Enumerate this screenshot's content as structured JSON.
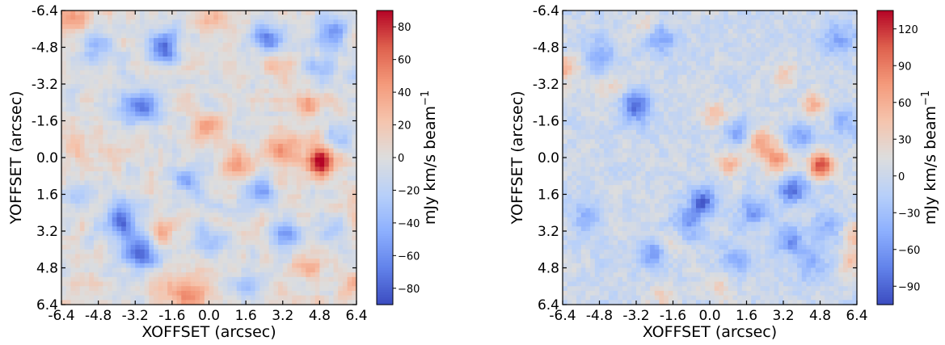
{
  "chart_data": [
    {
      "type": "heatmap",
      "xlabel": "XOFFSET (arcsec)",
      "ylabel": "YOFFSET (arcsec)",
      "x_ticks": [
        "-6.4",
        "-4.8",
        "-3.2",
        "-1.6",
        "0.0",
        "1.6",
        "3.2",
        "4.8",
        "6.4"
      ],
      "y_ticks": [
        "-6.4",
        "-4.8",
        "-3.2",
        "-1.6",
        "0.0",
        "1.6",
        "3.2",
        "4.8",
        "6.4"
      ],
      "xlim": [
        -6.4,
        6.4
      ],
      "ylim": [
        -6.4,
        6.4
      ],
      "y_inverted": true,
      "colormap": "coolwarm",
      "colorbar": {
        "label": "mJy km/s beam",
        "label_exponent": "−1",
        "range": [
          -90,
          90
        ],
        "ticks": [
          "80",
          "60",
          "40",
          "20",
          "0",
          "−20",
          "−40",
          "−60",
          "−80"
        ],
        "tick_values": [
          80,
          60,
          40,
          20,
          0,
          -20,
          -40,
          -60,
          -80
        ]
      },
      "pixels": 64,
      "peak": {
        "x": 4.8,
        "y": 0.2,
        "value": 90
      },
      "features": [
        {
          "x": 4.8,
          "y": 0.2,
          "value": 85,
          "sigma": 0.45
        },
        {
          "x": 3.3,
          "y": -0.3,
          "value": 45,
          "sigma": 0.5
        },
        {
          "x": 4.4,
          "y": -2.4,
          "value": 40,
          "sigma": 0.4
        },
        {
          "x": -0.1,
          "y": -1.3,
          "value": 45,
          "sigma": 0.45
        },
        {
          "x": 1.3,
          "y": 0.4,
          "value": 38,
          "sigma": 0.5
        },
        {
          "x": -5.8,
          "y": -6.0,
          "value": 35,
          "sigma": 0.6
        },
        {
          "x": 0.2,
          "y": -6.1,
          "value": 35,
          "sigma": 0.5
        },
        {
          "x": -0.8,
          "y": 6.0,
          "value": 55,
          "sigma": 0.5
        },
        {
          "x": -1.8,
          "y": 5.7,
          "value": 30,
          "sigma": 0.4
        },
        {
          "x": -2.2,
          "y": 3.3,
          "value": 35,
          "sigma": 0.4
        },
        {
          "x": 6.3,
          "y": 5.5,
          "value": 40,
          "sigma": 0.4
        },
        {
          "x": 6.4,
          "y": 2.5,
          "value": 28,
          "sigma": 0.6
        },
        {
          "x": 4.3,
          "y": 4.7,
          "value": 30,
          "sigma": 0.4
        },
        {
          "x": -5.9,
          "y": -0.6,
          "value": 28,
          "sigma": 0.5
        },
        {
          "x": -4.2,
          "y": -0.3,
          "value": 20,
          "sigma": 0.5
        },
        {
          "x": 3.0,
          "y": -4.0,
          "value": 22,
          "sigma": 0.5
        },
        {
          "x": -3.0,
          "y": -2.2,
          "value": -75,
          "sigma": 0.55
        },
        {
          "x": -1.9,
          "y": -4.9,
          "value": -65,
          "sigma": 0.5
        },
        {
          "x": -3.8,
          "y": 2.8,
          "value": -65,
          "sigma": 0.6
        },
        {
          "x": -3.0,
          "y": 4.2,
          "value": -75,
          "sigma": 0.55
        },
        {
          "x": 3.4,
          "y": 3.4,
          "value": -60,
          "sigma": 0.45
        },
        {
          "x": 2.6,
          "y": -5.2,
          "value": -60,
          "sigma": 0.5
        },
        {
          "x": 5.3,
          "y": -5.5,
          "value": -60,
          "sigma": 0.5
        },
        {
          "x": -5.0,
          "y": -4.8,
          "value": -45,
          "sigma": 0.5
        },
        {
          "x": 2.1,
          "y": 1.5,
          "value": -45,
          "sigma": 0.5
        },
        {
          "x": -0.9,
          "y": 1.2,
          "value": -40,
          "sigma": 0.5
        },
        {
          "x": 5.8,
          "y": -0.8,
          "value": -40,
          "sigma": 0.4
        },
        {
          "x": 0.0,
          "y": 3.5,
          "value": -35,
          "sigma": 0.5
        },
        {
          "x": 5.6,
          "y": 3.0,
          "value": -35,
          "sigma": 0.5
        },
        {
          "x": -5.8,
          "y": 1.6,
          "value": -25,
          "sigma": 0.5
        },
        {
          "x": 1.7,
          "y": 5.6,
          "value": -30,
          "sigma": 0.5
        },
        {
          "x": 4.9,
          "y": -3.8,
          "value": -30,
          "sigma": 0.5
        }
      ]
    },
    {
      "type": "heatmap",
      "xlabel": "XOFFSET (arcsec)",
      "ylabel": "YOFFSET (arcsec)",
      "x_ticks": [
        "-6.4",
        "-4.8",
        "-3.2",
        "-1.6",
        "0.0",
        "1.6",
        "3.2",
        "4.8",
        "6.4"
      ],
      "y_ticks": [
        "-6.4",
        "-4.8",
        "-3.2",
        "-1.6",
        "0.0",
        "1.6",
        "3.2",
        "4.8",
        "6.4"
      ],
      "xlim": [
        -6.4,
        6.4
      ],
      "ylim": [
        -6.4,
        6.4
      ],
      "y_inverted": true,
      "colormap": "coolwarm",
      "colorbar": {
        "label": "mJy km/s beam",
        "label_exponent": "−1",
        "range": [
          -105,
          135
        ],
        "ticks": [
          "120",
          "90",
          "60",
          "30",
          "0",
          "−30",
          "−60",
          "−90"
        ],
        "tick_values": [
          120,
          90,
          60,
          30,
          0,
          -30,
          -60,
          -90
        ]
      },
      "pixels": 64,
      "peak": {
        "x": 4.8,
        "y": 0.3,
        "value": 130
      },
      "features": [
        {
          "x": 4.8,
          "y": 0.3,
          "value": 125,
          "sigma": 0.35
        },
        {
          "x": 2.3,
          "y": -0.6,
          "value": 70,
          "sigma": 0.5
        },
        {
          "x": 3.0,
          "y": 0.2,
          "value": 60,
          "sigma": 0.4
        },
        {
          "x": 4.5,
          "y": -2.3,
          "value": 55,
          "sigma": 0.4
        },
        {
          "x": 0.9,
          "y": 0.3,
          "value": 50,
          "sigma": 0.35
        },
        {
          "x": 0.2,
          "y": -1.9,
          "value": 40,
          "sigma": 0.4
        },
        {
          "x": -6.2,
          "y": -3.9,
          "value": 50,
          "sigma": 0.45
        },
        {
          "x": 3.3,
          "y": -3.7,
          "value": 35,
          "sigma": 0.4
        },
        {
          "x": -2.7,
          "y": -5.8,
          "value": 35,
          "sigma": 0.4
        },
        {
          "x": -4.4,
          "y": -3.0,
          "value": 30,
          "sigma": 0.4
        },
        {
          "x": 6.3,
          "y": 4.5,
          "value": 55,
          "sigma": 0.4
        },
        {
          "x": 6.2,
          "y": 3.3,
          "value": 40,
          "sigma": 0.4
        },
        {
          "x": 0.5,
          "y": 5.6,
          "value": 35,
          "sigma": 0.4
        },
        {
          "x": -1.6,
          "y": 3.6,
          "value": 30,
          "sigma": 0.4
        },
        {
          "x": -2.0,
          "y": 6.0,
          "value": 30,
          "sigma": 0.4
        },
        {
          "x": -3.2,
          "y": -2.2,
          "value": -90,
          "sigma": 0.45
        },
        {
          "x": 3.6,
          "y": 1.4,
          "value": -95,
          "sigma": 0.4
        },
        {
          "x": -0.3,
          "y": 1.9,
          "value": -85,
          "sigma": 0.4
        },
        {
          "x": -1.0,
          "y": 2.9,
          "value": -55,
          "sigma": 0.5
        },
        {
          "x": -2.5,
          "y": 4.2,
          "value": -60,
          "sigma": 0.4
        },
        {
          "x": 3.5,
          "y": 3.6,
          "value": -60,
          "sigma": 0.45
        },
        {
          "x": -2.1,
          "y": -5.2,
          "value": -55,
          "sigma": 0.45
        },
        {
          "x": -4.8,
          "y": -4.4,
          "value": -50,
          "sigma": 0.5
        },
        {
          "x": 1.3,
          "y": -1.1,
          "value": -55,
          "sigma": 0.4
        },
        {
          "x": 3.9,
          "y": -0.9,
          "value": -50,
          "sigma": 0.4
        },
        {
          "x": 1.9,
          "y": 2.4,
          "value": -50,
          "sigma": 0.45
        },
        {
          "x": 5.6,
          "y": -5.2,
          "value": -50,
          "sigma": 0.5
        },
        {
          "x": 6.0,
          "y": -1.6,
          "value": -40,
          "sigma": 0.5
        },
        {
          "x": 5.2,
          "y": 3.0,
          "value": -40,
          "sigma": 0.5
        },
        {
          "x": 4.4,
          "y": 4.6,
          "value": -40,
          "sigma": 0.5
        },
        {
          "x": -5.4,
          "y": 2.6,
          "value": -35,
          "sigma": 0.5
        },
        {
          "x": 1.1,
          "y": 4.5,
          "value": -35,
          "sigma": 0.5
        }
      ]
    }
  ]
}
